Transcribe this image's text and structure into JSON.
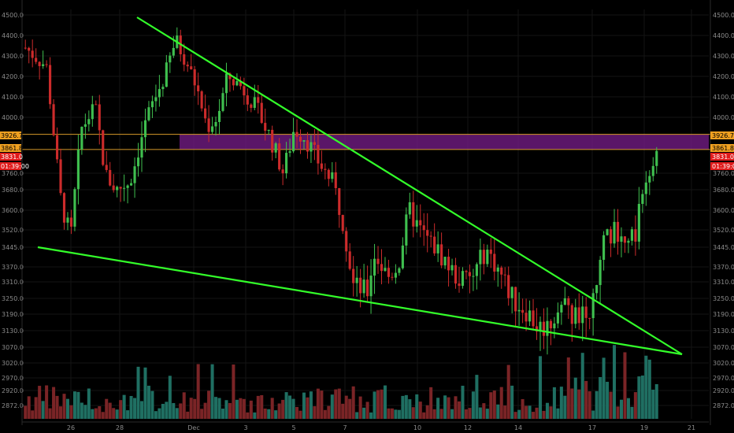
{
  "colors": {
    "background": "#000000",
    "up": "#3fbf4f",
    "down": "#cc2b2b",
    "volume_up": "#1f6f62",
    "volume_down": "#7a2426",
    "trendline": "#33ff2a",
    "zone_fill": "#6a1a7a",
    "zone_border": "#d79a2a",
    "axis_text": "#8b8b8b",
    "badge_orange": "#f0a020",
    "badge_red": "#e01b1b",
    "grid": "#141414"
  },
  "chart_data": {
    "type": "candlestick",
    "title": "",
    "xlabel": "",
    "ylabel": "",
    "ylim": [
      2830,
      4560
    ],
    "grid": true,
    "y_ticks_left": [
      "4500.0",
      "4400.0",
      "4300.0",
      "4200.0",
      "4100.0",
      "4000.0",
      "3760.0",
      "3680.0",
      "3600.0",
      "3520.0",
      "3445.0",
      "3370.0",
      "3310.0",
      "3250.0",
      "3190.0",
      "3130.0",
      "3070.0",
      "3020.0",
      "2970.0",
      "2920.0",
      "2872.0"
    ],
    "y_ticks_right": [
      "4500.0",
      "4400.0",
      "4300.0",
      "4200.0",
      "4100.0",
      "4000.0",
      "3760.0",
      "3680.0",
      "3600.0",
      "3520.0",
      "3445.0",
      "3370.0",
      "3310.0",
      "3250.0",
      "3190.0",
      "3130.0",
      "3070.0",
      "3020.0",
      "2970.0",
      "2920.0",
      "2872.0"
    ],
    "x_ticks": [
      "26",
      "28",
      "Dec",
      "3",
      "5",
      "7",
      "10",
      "12",
      "14",
      "17",
      "19",
      "21"
    ],
    "price_badges": [
      {
        "label": "3926.7",
        "value": 3926.7,
        "color": "orange"
      },
      {
        "label": "3861.8",
        "value": 3861.8,
        "color": "orange"
      },
      {
        "label": "3831.0",
        "value": 3831.0,
        "color": "red"
      },
      {
        "label": "01:39:00",
        "value": 3800.0,
        "color": "red"
      }
    ],
    "zone": {
      "low": 3861.8,
      "high": 3926.7
    },
    "trendlines": [
      {
        "name": "",
        "from": [
          0.195,
          4480
        ],
        "to": [
          0.93,
          3055
        ]
      },
      {
        "name": "",
        "from": [
          0.05,
          3450
        ],
        "to": [
          0.93,
          3055
        ]
      }
    ],
    "series_path": [
      [
        0.0,
        4340
      ],
      [
        0.03,
        4250
      ],
      [
        0.05,
        3650
      ],
      [
        0.065,
        3480
      ],
      [
        0.08,
        3950
      ],
      [
        0.1,
        4050
      ],
      [
        0.115,
        3750
      ],
      [
        0.13,
        3680
      ],
      [
        0.15,
        3720
      ],
      [
        0.165,
        3900
      ],
      [
        0.18,
        4050
      ],
      [
        0.2,
        4200
      ],
      [
        0.215,
        4380
      ],
      [
        0.23,
        4280
      ],
      [
        0.245,
        4150
      ],
      [
        0.26,
        3960
      ],
      [
        0.275,
        4000
      ],
      [
        0.29,
        4200
      ],
      [
        0.31,
        4150
      ],
      [
        0.33,
        4050
      ],
      [
        0.35,
        3920
      ],
      [
        0.37,
        3760
      ],
      [
        0.385,
        3950
      ],
      [
        0.4,
        3920
      ],
      [
        0.42,
        3810
      ],
      [
        0.44,
        3720
      ],
      [
        0.455,
        3560
      ],
      [
        0.47,
        3300
      ],
      [
        0.49,
        3270
      ],
      [
        0.5,
        3420
      ],
      [
        0.52,
        3330
      ],
      [
        0.535,
        3380
      ],
      [
        0.55,
        3600
      ],
      [
        0.565,
        3520
      ],
      [
        0.58,
        3470
      ],
      [
        0.6,
        3400
      ],
      [
        0.62,
        3320
      ],
      [
        0.64,
        3320
      ],
      [
        0.66,
        3440
      ],
      [
        0.68,
        3350
      ],
      [
        0.7,
        3240
      ],
      [
        0.72,
        3200
      ],
      [
        0.735,
        3140
      ],
      [
        0.75,
        3150
      ],
      [
        0.77,
        3230
      ],
      [
        0.785,
        3190
      ],
      [
        0.8,
        3190
      ],
      [
        0.815,
        3230
      ],
      [
        0.83,
        3480
      ],
      [
        0.845,
        3520
      ],
      [
        0.86,
        3470
      ],
      [
        0.875,
        3490
      ],
      [
        0.885,
        3700
      ],
      [
        0.895,
        3780
      ],
      [
        0.905,
        3820
      ]
    ],
    "candle_count": 180,
    "volume_seed": 7
  }
}
